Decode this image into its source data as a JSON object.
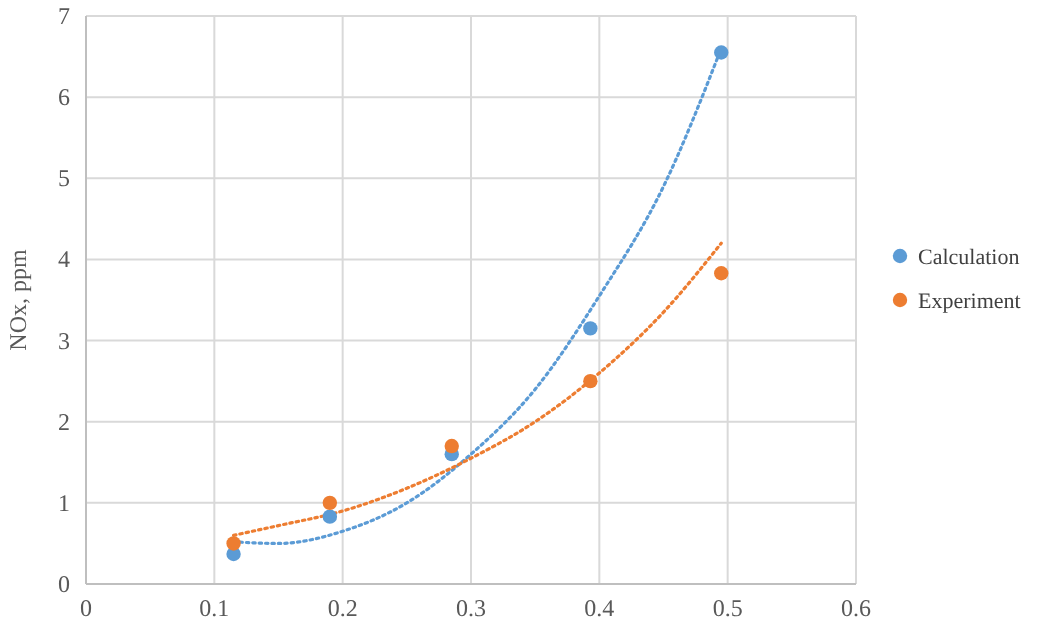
{
  "chart_data": {
    "type": "scatter",
    "ylabel": "NOx, ppm",
    "xlim": [
      0,
      0.6
    ],
    "ylim": [
      0,
      7
    ],
    "xticks": [
      0,
      0.1,
      0.2,
      0.3,
      0.4,
      0.5,
      0.6
    ],
    "yticks": [
      0,
      1,
      2,
      3,
      4,
      5,
      6,
      7
    ],
    "grid": true,
    "legend": "right",
    "marker": "circle",
    "series": [
      {
        "name": "Calculation",
        "color": "#5b9bd5",
        "x": [
          0.115,
          0.19,
          0.285,
          0.393,
          0.495
        ],
        "values": [
          0.37,
          0.83,
          1.6,
          3.15,
          6.55
        ]
      },
      {
        "name": "Experiment",
        "color": "#ed7d31",
        "x": [
          0.115,
          0.19,
          0.285,
          0.393,
          0.495
        ],
        "values": [
          0.5,
          1.0,
          1.7,
          2.5,
          3.83
        ]
      },
      {
        "type": "line",
        "color": "#5b9bd5",
        "line_style": "dotted",
        "marker": "none",
        "x": [
          0.115,
          0.15,
          0.2,
          0.25,
          0.3,
          0.35,
          0.4,
          0.45,
          0.495
        ],
        "values": [
          0.52,
          0.5,
          0.65,
          1.0,
          1.6,
          2.4,
          3.55,
          4.9,
          6.6
        ]
      },
      {
        "type": "line",
        "color": "#ed7d31",
        "line_style": "dotted",
        "marker": "none",
        "x": [
          0.115,
          0.15,
          0.2,
          0.25,
          0.3,
          0.35,
          0.4,
          0.45,
          0.495
        ],
        "values": [
          0.6,
          0.72,
          0.9,
          1.18,
          1.55,
          2.0,
          2.6,
          3.35,
          4.2
        ]
      }
    ]
  }
}
